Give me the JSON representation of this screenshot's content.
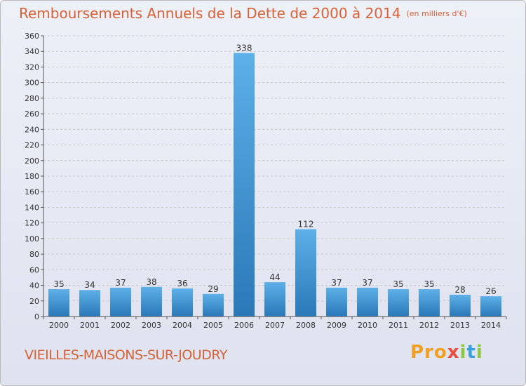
{
  "header": {
    "title": "Remboursements Annuels de la Dette de 2000 à 2014",
    "unit": "(en milliers d'€)"
  },
  "footer": {
    "commune": "VIEILLES-MAISONS-SUR-JOUDRY",
    "logo": [
      "Pro",
      "x",
      "i",
      "t",
      "i"
    ]
  },
  "colors": {
    "bar_top": "#5eb0e8",
    "bar_bottom": "#2a78b8",
    "title": "#d66236",
    "grid": "#c8c8c8"
  },
  "chart_data": {
    "type": "bar",
    "title": "Remboursements Annuels de la Dette de 2000 à 2014",
    "categories": [
      "2000",
      "2001",
      "2002",
      "2003",
      "2004",
      "2005",
      "2006",
      "2007",
      "2008",
      "2009",
      "2010",
      "2011",
      "2012",
      "2013",
      "2014"
    ],
    "values": [
      35,
      34,
      37,
      38,
      36,
      29,
      338,
      44,
      112,
      37,
      37,
      35,
      35,
      28,
      26
    ],
    "xlabel": "",
    "ylabel": "",
    "ylim": [
      0,
      360
    ],
    "yticks": [
      0,
      20,
      40,
      60,
      80,
      100,
      120,
      140,
      160,
      180,
      200,
      220,
      240,
      260,
      280,
      300,
      320,
      340,
      360
    ],
    "grid": true
  }
}
